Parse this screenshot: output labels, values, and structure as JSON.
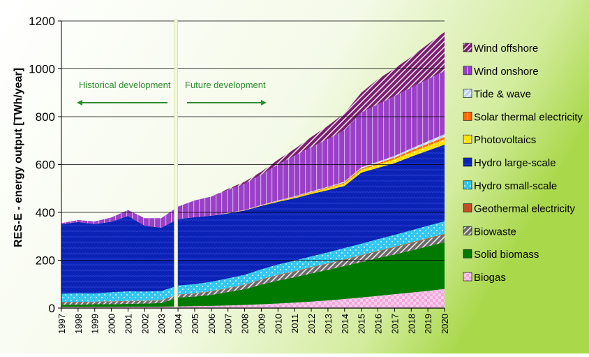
{
  "chart_data": {
    "type": "area",
    "ylabel": "RES-E - energy output [TWh/year]",
    "ylim": [
      0,
      1200
    ],
    "y_ticks": [
      0,
      200,
      400,
      600,
      800,
      1000,
      1200
    ],
    "grid": true,
    "stacked": true,
    "legend_position": "right",
    "x": [
      "1997",
      "1998",
      "1999",
      "2000",
      "2001",
      "2002",
      "2003",
      "2004",
      "2005",
      "2006",
      "2007",
      "2008",
      "2009",
      "2010",
      "2011",
      "2012",
      "2013",
      "2014",
      "2015",
      "2016",
      "2017",
      "2018",
      "2019",
      "2020"
    ],
    "annotations": {
      "divider_year": "2004",
      "historical": "Historical development",
      "future": "Future development",
      "color": "#2e8b2e"
    },
    "series": [
      {
        "name": "Biogas",
        "color": "#f3a6dc",
        "pattern": "checker",
        "values": [
          5,
          5,
          5,
          5,
          6,
          6,
          6,
          7,
          8,
          9,
          11,
          13,
          16,
          19,
          23,
          27,
          32,
          38,
          44,
          51,
          58,
          65,
          72,
          80
        ]
      },
      {
        "name": "Solid biomass",
        "color": "#007a00",
        "pattern": "solid",
        "values": [
          10,
          10,
          11,
          11,
          12,
          13,
          15,
          37,
          40,
          46,
          56,
          66,
          82,
          96,
          106,
          118,
          128,
          138,
          148,
          158,
          166,
          176,
          186,
          195
        ]
      },
      {
        "name": "Biowaste",
        "color": "#6b6b6b",
        "pattern": "diag",
        "values": [
          10,
          10,
          10,
          11,
          11,
          11,
          12,
          12,
          13,
          15,
          16,
          18,
          20,
          22,
          23,
          24,
          25,
          26,
          27,
          28,
          29,
          30,
          31,
          32
        ]
      },
      {
        "name": "Geothermal electricity",
        "color": "#c0502a",
        "pattern": "solid",
        "values": [
          1,
          1,
          1,
          1,
          1,
          1,
          1,
          1,
          1,
          1,
          1,
          1,
          2,
          2,
          2,
          2,
          2,
          2,
          2,
          2,
          3,
          3,
          3,
          3
        ]
      },
      {
        "name": "Hydro small-scale",
        "color": "#33c6f0",
        "pattern": "dots",
        "values": [
          34,
          36,
          34,
          38,
          40,
          38,
          37,
          37,
          38,
          39,
          40,
          41,
          42,
          43,
          44,
          45,
          46,
          47,
          48,
          49,
          50,
          51,
          52,
          53
        ]
      },
      {
        "name": "Hydro large-scale",
        "color": "#0a22b5",
        "pattern": "wave",
        "values": [
          290,
          298,
          290,
          295,
          315,
          275,
          265,
          278,
          280,
          276,
          272,
          269,
          265,
          262,
          261,
          261,
          260,
          260,
          297,
          298,
          300,
          308,
          314,
          320
        ]
      },
      {
        "name": "Photovoltaics",
        "color": "#ffe000",
        "pattern": "dots",
        "values": [
          0,
          0,
          0,
          0,
          0,
          0,
          0,
          0,
          0,
          0,
          1,
          1,
          2,
          3,
          4,
          6,
          8,
          10,
          12,
          14,
          16,
          18,
          20,
          22
        ]
      },
      {
        "name": "Solar thermal electricity",
        "color": "#ff6a00",
        "pattern": "vert",
        "values": [
          0,
          0,
          0,
          0,
          0,
          0,
          0,
          0,
          0,
          0,
          0,
          0,
          1,
          1,
          2,
          2,
          3,
          4,
          5,
          6,
          7,
          8,
          9,
          10
        ]
      },
      {
        "name": "Tide & wave",
        "color": "#bcd2ff",
        "pattern": "diag",
        "values": [
          0,
          0,
          0,
          0,
          0,
          0,
          0,
          0,
          0,
          0,
          1,
          1,
          1,
          2,
          2,
          3,
          3,
          4,
          5,
          6,
          7,
          8,
          10,
          12
        ]
      },
      {
        "name": "Wind onshore",
        "color": "#9a40c8",
        "pattern": "vert",
        "values": [
          5,
          8,
          11,
          18,
          25,
          32,
          40,
          52,
          70,
          80,
          96,
          110,
          127,
          150,
          170,
          185,
          200,
          215,
          230,
          240,
          250,
          255,
          260,
          264
        ]
      },
      {
        "name": "Wind offshore",
        "color": "#7a1f70",
        "pattern": "diag",
        "values": [
          0,
          0,
          0,
          0,
          0,
          0,
          0,
          0,
          0,
          0,
          4,
          8,
          12,
          20,
          28,
          42,
          55,
          71,
          82,
          105,
          115,
          128,
          146,
          163
        ]
      }
    ]
  }
}
